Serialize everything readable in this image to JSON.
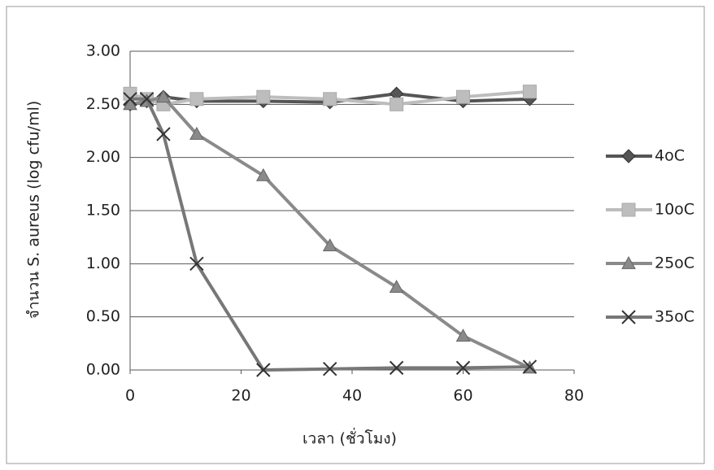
{
  "chart_data": {
    "type": "line",
    "x_label": "เวลา  (ชั่วโมง)",
    "y_label": "จำนวน S. aureus (log cfu/ml)",
    "x": [
      0,
      3,
      6,
      12,
      24,
      36,
      48,
      60,
      72
    ],
    "series": [
      {
        "name": "4oC",
        "color": "#555555",
        "marker": "diamond",
        "values": [
          2.5,
          2.53,
          2.57,
          2.53,
          2.53,
          2.52,
          2.6,
          2.53,
          2.55
        ]
      },
      {
        "name": "10oC",
        "color": "#bdbdbd",
        "marker": "square",
        "values": [
          2.6,
          2.55,
          2.5,
          2.55,
          2.57,
          2.55,
          2.5,
          2.57,
          2.62
        ]
      },
      {
        "name": "25oC",
        "color": "#8a8a8a",
        "marker": "triangle",
        "values": [
          2.5,
          2.53,
          2.57,
          2.22,
          1.83,
          1.17,
          0.78,
          0.32,
          0.02
        ]
      },
      {
        "name": "35oC",
        "color": "#777777",
        "marker": "x",
        "values": [
          2.55,
          2.55,
          2.22,
          1.0,
          0.0,
          0.01,
          0.02,
          0.02,
          0.03
        ]
      }
    ],
    "xlim": [
      0,
      80
    ],
    "xticks": [
      0,
      20,
      40,
      60,
      80
    ],
    "ylim": [
      0,
      3
    ],
    "yticks": [
      {
        "value": 0,
        "label": "0.00"
      },
      {
        "value": 0.5,
        "label": "0.50"
      },
      {
        "value": 1,
        "label": "1.00"
      },
      {
        "value": 1.5,
        "label": "1.50"
      },
      {
        "value": 2,
        "label": "2.00"
      },
      {
        "value": 2.5,
        "label": "2.50"
      },
      {
        "value": 3,
        "label": "3.00"
      }
    ],
    "grid": true,
    "legend": "right"
  }
}
